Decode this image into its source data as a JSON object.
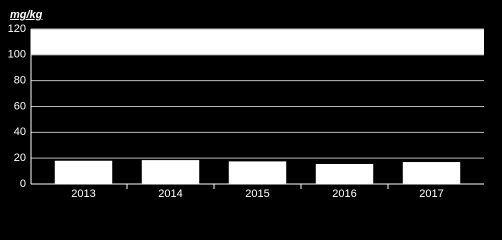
{
  "chart_data": {
    "type": "bar",
    "unit": "mg/kg",
    "categories": [
      "2013",
      "2014",
      "2015",
      "2016",
      "2017"
    ],
    "values": [
      18,
      18.5,
      17.5,
      15.5,
      17
    ],
    "color": "#ffffff",
    "threshold_band": [
      100,
      120
    ],
    "ylim": [
      0,
      120
    ],
    "yticks": [
      0,
      20,
      40,
      60,
      80,
      100,
      120
    ],
    "grid": true
  }
}
